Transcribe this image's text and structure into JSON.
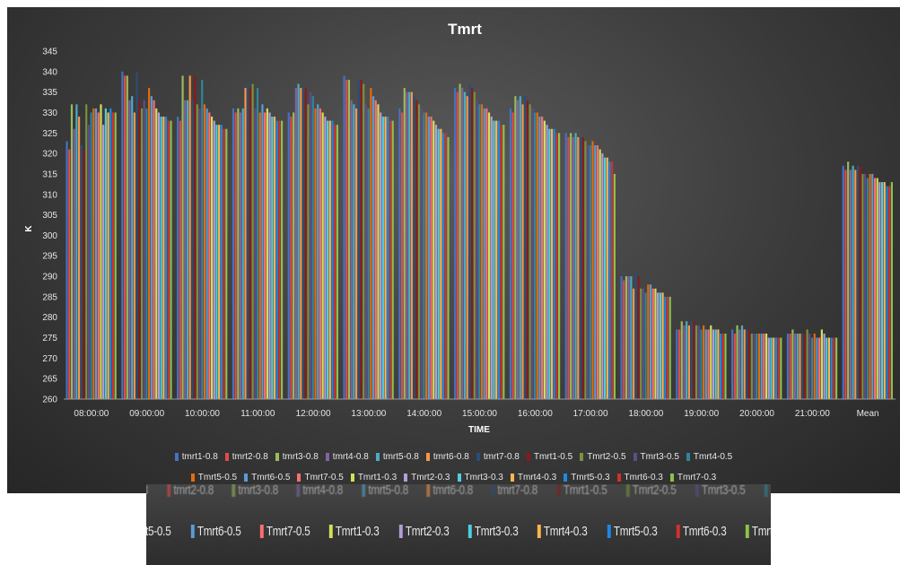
{
  "chart_data": {
    "type": "bar",
    "title": "Tmrt",
    "xlabel": "TIME",
    "ylabel": "K",
    "ylim": [
      260,
      345
    ],
    "yticks": [
      260,
      265,
      270,
      275,
      280,
      285,
      290,
      295,
      300,
      305,
      310,
      315,
      320,
      325,
      330,
      335,
      340,
      345
    ],
    "grid": "none",
    "legend_position": "bottom",
    "categories": [
      "08:00:00",
      "09:00:00",
      "10:00:00",
      "11:00:00",
      "12:00:00",
      "13:00:00",
      "14:00:00",
      "15:00:00",
      "16:00:00",
      "17:00:00",
      "18:00:00",
      "19:00:00",
      "20:00:00",
      "21:00:00",
      "Mean"
    ],
    "series": [
      {
        "name": "tmrt1-0.8",
        "color": "#4472C4",
        "values": [
          323,
          340,
          329,
          331,
          330,
          339,
          331,
          336,
          331,
          325,
          290,
          277,
          277,
          276,
          317
        ]
      },
      {
        "name": "tmrt2-0.8",
        "color": "#E04B4B",
        "values": [
          321,
          339,
          328,
          330,
          329,
          338,
          330,
          335,
          330,
          324,
          289,
          277,
          276,
          276,
          316
        ]
      },
      {
        "name": "tmrt3-0.8",
        "color": "#9BBB59",
        "values": [
          332,
          339,
          339,
          331,
          330,
          338,
          336,
          337,
          334,
          325,
          290,
          279,
          278,
          277,
          318
        ]
      },
      {
        "name": "tmrt4-0.8",
        "color": "#8064A2",
        "values": [
          326,
          333,
          333,
          330,
          336,
          333,
          335,
          336,
          333,
          324,
          290,
          278,
          277,
          276,
          316
        ]
      },
      {
        "name": "tmrt5-0.8",
        "color": "#4BACC6",
        "values": [
          332,
          334,
          333,
          331,
          337,
          332,
          335,
          335,
          334,
          325,
          290,
          279,
          278,
          276,
          317
        ]
      },
      {
        "name": "tmrt6-0.8",
        "color": "#F79646",
        "values": [
          329,
          330,
          339,
          336,
          336,
          331,
          335,
          334,
          332,
          324,
          287,
          278,
          277,
          276,
          316
        ]
      },
      {
        "name": "tmrt7-0.8",
        "color": "#2C4D75",
        "values": [
          322,
          340,
          333,
          337,
          336,
          338,
          334,
          337,
          334,
          324,
          291,
          279,
          277,
          276,
          317
        ]
      },
      {
        "name": "Tmrt1-0.5",
        "color": "#8B1A1A",
        "values": [
          321,
          333,
          339,
          336,
          336,
          338,
          333,
          336,
          333,
          324,
          290,
          279,
          277,
          276,
          317
        ]
      },
      {
        "name": "Tmrt2-0.5",
        "color": "#77933C",
        "values": [
          332,
          331,
          332,
          337,
          332,
          337,
          332,
          335,
          332,
          323,
          287,
          278,
          276,
          277,
          315
        ]
      },
      {
        "name": "Tmrt3-0.5",
        "color": "#5F4B8B",
        "values": [
          327,
          333,
          331,
          331,
          335,
          332,
          331,
          333,
          331,
          322,
          287,
          278,
          276,
          276,
          315
        ]
      },
      {
        "name": "Tmrt4-0.5",
        "color": "#31859C",
        "values": [
          330,
          331,
          338,
          336,
          334,
          331,
          330,
          332,
          330,
          322,
          286,
          277,
          276,
          275,
          314
        ]
      },
      {
        "name": "Tmrt5-0.5",
        "color": "#E46C0A",
        "values": [
          331,
          336,
          332,
          330,
          331,
          336,
          330,
          332,
          330,
          323,
          288,
          278,
          276,
          276,
          315
        ]
      },
      {
        "name": "Tmrt6-0.5",
        "color": "#5B9BD5",
        "values": [
          331,
          334,
          331,
          332,
          332,
          334,
          329,
          331,
          329,
          322,
          288,
          277,
          276,
          275,
          315
        ]
      },
      {
        "name": "Tmrt7-0.5",
        "color": "#FF6F6F",
        "values": [
          330,
          333,
          330,
          330,
          331,
          333,
          329,
          331,
          329,
          322,
          287,
          277,
          276,
          275,
          314
        ]
      },
      {
        "name": "Tmrt1-0.3",
        "color": "#D4E157",
        "values": [
          332,
          331,
          329,
          331,
          330,
          332,
          328,
          330,
          328,
          321,
          287,
          278,
          276,
          277,
          314
        ]
      },
      {
        "name": "Tmrt2-0.3",
        "color": "#B39DDB",
        "values": [
          327,
          330,
          328,
          330,
          329,
          330,
          327,
          329,
          327,
          320,
          286,
          277,
          275,
          276,
          313
        ]
      },
      {
        "name": "Tmrt3-0.3",
        "color": "#4DD0E1",
        "values": [
          331,
          329,
          327,
          329,
          328,
          329,
          326,
          328,
          326,
          319,
          286,
          277,
          275,
          275,
          313
        ]
      },
      {
        "name": "Tmrt4-0.3",
        "color": "#FFB74D",
        "values": [
          330,
          329,
          327,
          329,
          328,
          329,
          326,
          328,
          326,
          319,
          286,
          277,
          275,
          275,
          313
        ]
      },
      {
        "name": "Tmrt5-0.3",
        "color": "#1E88E5",
        "values": [
          331,
          329,
          327,
          328,
          328,
          329,
          325,
          328,
          326,
          318,
          285,
          276,
          275,
          275,
          312
        ]
      },
      {
        "name": "Tmrt6-0.3",
        "color": "#D32F2F",
        "values": [
          330,
          328,
          326,
          328,
          327,
          328,
          325,
          327,
          325,
          318,
          285,
          276,
          275,
          275,
          312
        ]
      },
      {
        "name": "Tmrt7-0.3",
        "color": "#8BC34A",
        "values": [
          330,
          328,
          326,
          328,
          327,
          328,
          324,
          327,
          325,
          315,
          285,
          276,
          275,
          275,
          313
        ]
      }
    ]
  }
}
